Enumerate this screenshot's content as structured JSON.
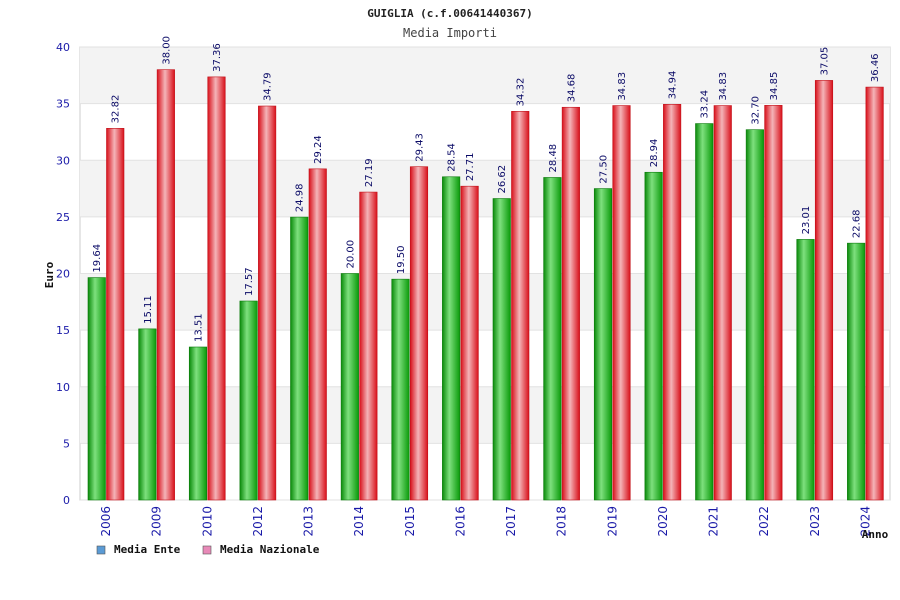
{
  "chart_data": {
    "type": "bar",
    "title": "GUIGLIA (c.f.00641440367)",
    "subtitle": "Media Importi",
    "xlabel": "Anno",
    "ylabel": "Euro",
    "ylim": [
      0,
      40
    ],
    "yticks": [
      0,
      5,
      10,
      15,
      20,
      25,
      30,
      35,
      40
    ],
    "grid": true,
    "legend": "bottom-left",
    "categories": [
      "2006",
      "2009",
      "2010",
      "2012",
      "2013",
      "2014",
      "2015",
      "2016",
      "2017",
      "2018",
      "2019",
      "2020",
      "2021",
      "2022",
      "2023",
      "2024"
    ],
    "series": [
      {
        "name": "Media Ente",
        "legend_color": "#5b9bd5",
        "bar_color": "#1fb31f",
        "values": [
          19.64,
          15.11,
          13.51,
          17.57,
          24.98,
          20.0,
          19.5,
          28.54,
          26.62,
          28.48,
          27.5,
          28.94,
          33.24,
          32.7,
          23.01,
          22.68
        ],
        "labels": [
          "19.64",
          "15.11",
          "13.51",
          "17.57",
          "24.98",
          "20.00",
          "19.50",
          "28.54",
          "26.62",
          "28.48",
          "27.50",
          "28.94",
          "33.24",
          "32.70",
          "23.01",
          "22.68"
        ]
      },
      {
        "name": "Media Nazionale",
        "legend_color": "#e889b8",
        "bar_color": "#e8202a",
        "values": [
          32.82,
          38.0,
          37.36,
          34.79,
          29.24,
          27.19,
          29.43,
          27.71,
          34.32,
          34.68,
          34.83,
          34.94,
          34.83,
          34.85,
          37.05,
          36.46
        ],
        "labels": [
          "32.82",
          "38.00",
          "37.36",
          "34.79",
          "29.24",
          "27.19",
          "29.43",
          "27.71",
          "34.32",
          "34.68",
          "34.83",
          "34.94",
          "34.83",
          "34.85",
          "37.05",
          "36.46"
        ]
      }
    ]
  }
}
